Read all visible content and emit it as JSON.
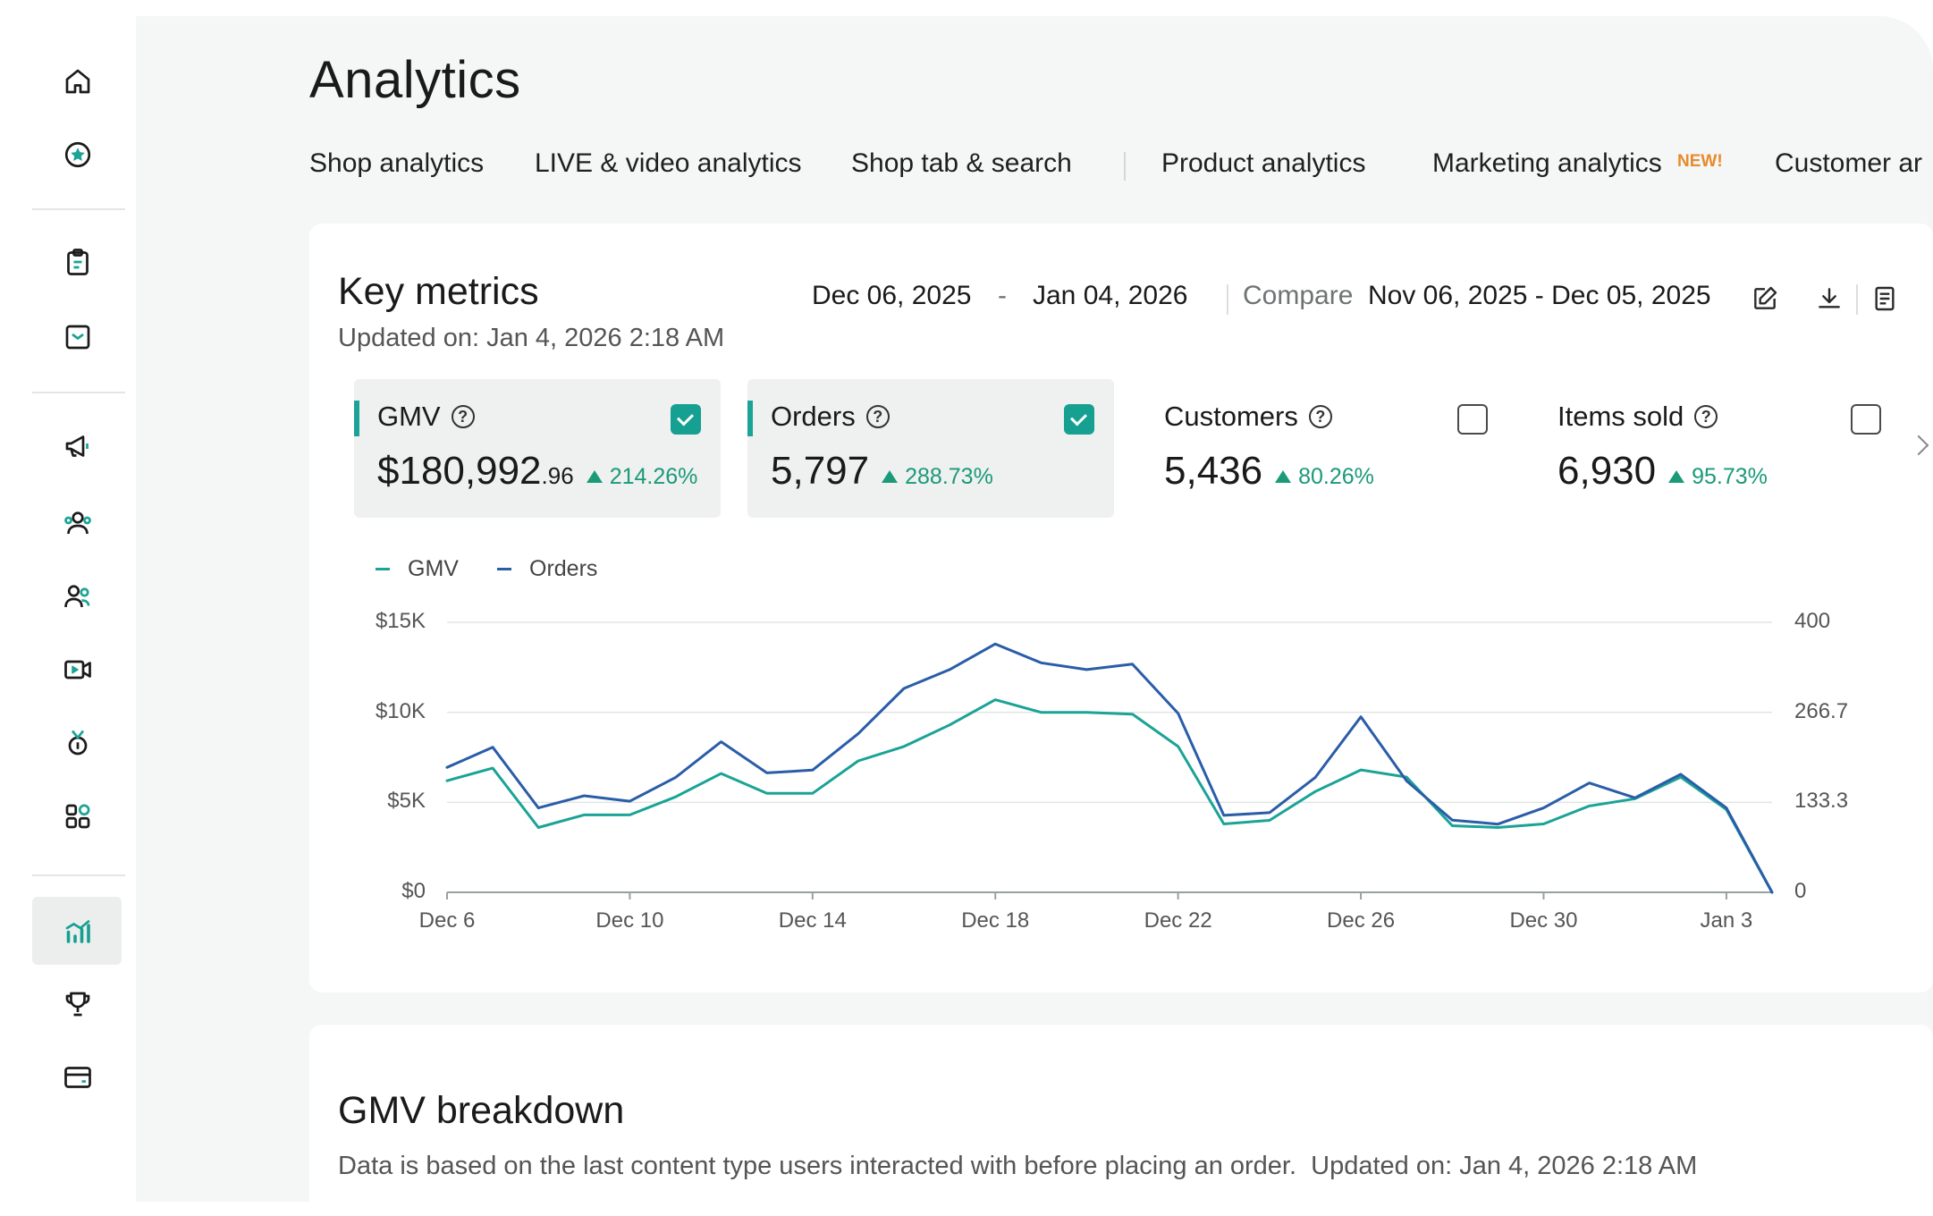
{
  "page": {
    "title": "Analytics"
  },
  "tabs": [
    {
      "label": "Shop analytics"
    },
    {
      "label": "LIVE & video analytics"
    },
    {
      "label": "Shop tab & search"
    },
    {
      "label": "Product analytics"
    },
    {
      "label": "Marketing analytics",
      "badge": "NEW!"
    },
    {
      "label": "Customer ar"
    }
  ],
  "sidebar": {
    "items": [
      {
        "icon": "home-icon"
      },
      {
        "icon": "star-badge-icon"
      },
      {
        "icon": "clipboard-icon"
      },
      {
        "icon": "inbox-icon"
      },
      {
        "icon": "megaphone-icon"
      },
      {
        "icon": "users-icon"
      },
      {
        "icon": "creators-icon"
      },
      {
        "icon": "video-icon"
      },
      {
        "icon": "medal-icon"
      },
      {
        "icon": "apps-icon"
      },
      {
        "icon": "analytics-icon",
        "active": true
      },
      {
        "icon": "trophy-icon"
      },
      {
        "icon": "wallet-icon"
      }
    ]
  },
  "key_metrics": {
    "title": "Key metrics",
    "updated": "Updated on: Jan 4, 2026 2:18 AM",
    "date_start": "Dec 06, 2025",
    "date_dash": "-",
    "date_end": "Jan 04, 2026",
    "compare_label": "Compare",
    "compare_range": "Nov 06, 2025 - Dec 05, 2025",
    "metrics": [
      {
        "label": "GMV",
        "value_main": "$180,992",
        "value_cents": ".96",
        "delta": "214.26%",
        "selected": true
      },
      {
        "label": "Orders",
        "value_main": "5,797",
        "value_cents": "",
        "delta": "288.73%",
        "selected": true
      },
      {
        "label": "Customers",
        "value_main": "5,436",
        "value_cents": "",
        "delta": "80.26%",
        "selected": false
      },
      {
        "label": "Items sold",
        "value_main": "6,930",
        "value_cents": "",
        "delta": "95.73%",
        "selected": false
      }
    ]
  },
  "colors": {
    "gmv": "#1aa396",
    "orders": "#2a5da8",
    "accent": "#15a091",
    "delta_up": "#1a9a78"
  },
  "chart_data": {
    "type": "line",
    "legend_position": "top-left",
    "grid": true,
    "x": [
      "Dec 6",
      "Dec 7",
      "Dec 8",
      "Dec 9",
      "Dec 10",
      "Dec 11",
      "Dec 12",
      "Dec 13",
      "Dec 14",
      "Dec 15",
      "Dec 16",
      "Dec 17",
      "Dec 18",
      "Dec 19",
      "Dec 20",
      "Dec 21",
      "Dec 22",
      "Dec 23",
      "Dec 24",
      "Dec 25",
      "Dec 26",
      "Dec 27",
      "Dec 28",
      "Dec 29",
      "Dec 30",
      "Dec 31",
      "Jan 1",
      "Jan 2",
      "Jan 3",
      "Jan 4"
    ],
    "x_tick_labels": [
      "Dec 6",
      "Dec 10",
      "Dec 14",
      "Dec 18",
      "Dec 22",
      "Dec 26",
      "Dec 30",
      "Jan 3"
    ],
    "y_left_tick_labels": [
      "$15K",
      "$10K",
      "$5K",
      "$0"
    ],
    "y_right_tick_labels": [
      "400",
      "266.7",
      "133.3",
      "0"
    ],
    "ylim_left": [
      0,
      15000
    ],
    "ylim_right": [
      0,
      400
    ],
    "series": [
      {
        "name": "GMV",
        "axis": "left",
        "values": [
          6200,
          6900,
          3600,
          4300,
          4300,
          5300,
          6600,
          5500,
          5500,
          7300,
          8100,
          9300,
          10700,
          10000,
          10000,
          9900,
          8100,
          3800,
          4000,
          5600,
          6800,
          6400,
          3700,
          3600,
          3800,
          4800,
          5200,
          6400,
          4600,
          0
        ]
      },
      {
        "name": "Orders",
        "axis": "right",
        "values": [
          185,
          215,
          125,
          143,
          135,
          170,
          223,
          177,
          181,
          235,
          302,
          330,
          368,
          340,
          330,
          338,
          265,
          114,
          118,
          170,
          260,
          165,
          107,
          101,
          125,
          162,
          140,
          175,
          125,
          0
        ]
      }
    ]
  },
  "gmv_breakdown": {
    "title": "GMV breakdown",
    "description": "Data is based on the last content type users interacted with before placing an order.",
    "updated": "Updated on: Jan 4, 2026 2:18 AM"
  }
}
